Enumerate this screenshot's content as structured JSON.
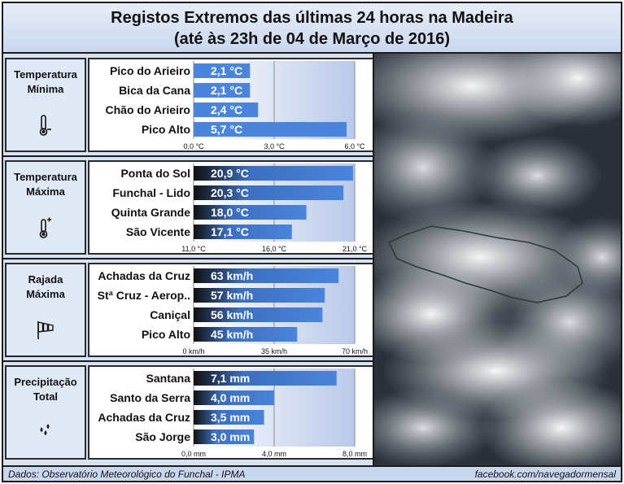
{
  "title": {
    "line1": "Registos Extremos das últimas 24 horas na Madeira",
    "line2": "(até às 23h de 04 de Março de 2016)"
  },
  "footer": {
    "source": "Dados:  Observatório Meteorológico do Funchal - IPMA",
    "link": "facebook.com/navegadormensal"
  },
  "colors": {
    "bar": "#4a84db",
    "bar_dark": "#1a1a1a",
    "background": "#d7e2f2"
  },
  "panels": [
    {
      "label_line1": "Temperatura",
      "label_line2": "Mínima",
      "icon": "thermometer-minus-icon"
    },
    {
      "label_line1": "Temperatura",
      "label_line2": "Máxima",
      "icon": "thermometer-plus-icon"
    },
    {
      "label_line1": "Rajada",
      "label_line2": "Máxima",
      "icon": "windsock-icon"
    },
    {
      "label_line1": "Precipitação",
      "label_line2": "Total",
      "icon": "raindrops-icon"
    }
  ],
  "chart_data": [
    {
      "type": "bar",
      "orientation": "horizontal",
      "categories": [
        "Pico do Arieiro",
        "Bica da Cana",
        "Chão do Arieiro",
        "Pico Alto"
      ],
      "values": [
        2.1,
        2.1,
        2.4,
        5.7
      ],
      "value_labels": [
        "2,1 °C",
        "2,1 °C",
        "2,4 °C",
        "5,7 °C"
      ],
      "xlim": [
        0,
        6
      ],
      "ticks": [
        0,
        3,
        6
      ],
      "tick_labels": [
        "0,0 °C",
        "3,0 °C",
        "6,0 °C"
      ]
    },
    {
      "type": "bar",
      "orientation": "horizontal",
      "categories": [
        "Ponta do Sol",
        "Funchal - Lido",
        "Quinta Grande",
        "São Vicente"
      ],
      "values": [
        20.9,
        20.3,
        18.0,
        17.1
      ],
      "value_labels": [
        "20,9 °C",
        "20,3 °C",
        "18,0 °C",
        "17,1 °C"
      ],
      "xlim": [
        11,
        21
      ],
      "ticks": [
        11,
        16,
        21
      ],
      "tick_labels": [
        "11,0 °C",
        "16,0 °C",
        "21,0 °C"
      ]
    },
    {
      "type": "bar",
      "orientation": "horizontal",
      "categories": [
        "Achadas da Cruz",
        "Stª Cruz - Aerop..",
        "Caniçal",
        "Pico Alto"
      ],
      "values": [
        63,
        57,
        56,
        45
      ],
      "value_labels": [
        "63 km/h",
        "57 km/h",
        "56 km/h",
        "45 km/h"
      ],
      "xlim": [
        0,
        70
      ],
      "ticks": [
        0,
        35,
        70
      ],
      "tick_labels": [
        "0 km/h",
        "35 km/h",
        "70 km/h"
      ]
    },
    {
      "type": "bar",
      "orientation": "horizontal",
      "categories": [
        "Santana",
        "Santo da Serra",
        "Achadas da Cruz",
        "São Jorge"
      ],
      "values": [
        7.1,
        4.0,
        3.5,
        3.0
      ],
      "value_labels": [
        "7,1 mm",
        "4,0 mm",
        "3,5 mm",
        "3,0 mm"
      ],
      "xlim": [
        0,
        8
      ],
      "ticks": [
        0,
        4,
        8
      ],
      "tick_labels": [
        "0,0 mm",
        "4,0 mm",
        "8,0 mm"
      ]
    }
  ]
}
